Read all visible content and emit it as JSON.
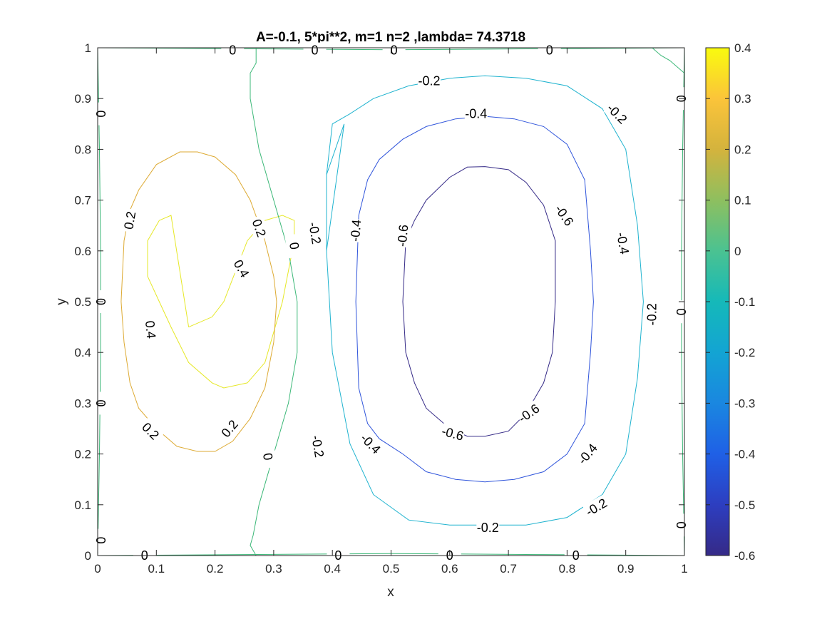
{
  "chart_data": {
    "type": "contour",
    "title": "A=-0.1, 5*pi**2, m=1 n=2 ,lambda= 74.3718",
    "xlabel": "x",
    "ylabel": "y",
    "xlim": [
      0,
      1
    ],
    "ylim": [
      0,
      1
    ],
    "xticks": [
      "0",
      "0.1",
      "0.2",
      "0.3",
      "0.4",
      "0.5",
      "0.6",
      "0.7",
      "0.8",
      "0.9",
      "1"
    ],
    "yticks": [
      "0",
      "0.1",
      "0.2",
      "0.3",
      "0.4",
      "0.5",
      "0.6",
      "0.7",
      "0.8",
      "0.9",
      "1"
    ],
    "grid": false,
    "colormap": "parula",
    "colorbar": {
      "location": "right",
      "clim": [
        -0.6,
        0.4
      ],
      "ticks": [
        "0.4",
        "0.3",
        "0.2",
        "0.1",
        "0",
        "-0.1",
        "-0.2",
        "-0.3",
        "-0.4",
        "-0.5",
        "-0.6"
      ]
    },
    "contours": [
      {
        "level": 0.4,
        "color": "#e6e827",
        "x": [
          0.155,
          0.195,
          0.215,
          0.255,
          0.285,
          0.315,
          0.335,
          0.335,
          0.315,
          0.285,
          0.255,
          0.215,
          0.195,
          0.155,
          0.125,
          0.105,
          0.085,
          0.085,
          0.105,
          0.125,
          0.155
        ],
        "y": [
          0.45,
          0.47,
          0.5,
          0.62,
          0.66,
          0.67,
          0.66,
          0.62,
          0.5,
          0.38,
          0.34,
          0.33,
          0.34,
          0.38,
          0.45,
          0.5,
          0.55,
          0.62,
          0.66,
          0.67,
          0.45
        ]
      },
      {
        "level": 0.2,
        "color": "#ddaa33",
        "x": [
          0.04,
          0.045,
          0.055,
          0.07,
          0.1,
          0.14,
          0.17,
          0.2,
          0.235,
          0.26,
          0.285,
          0.3,
          0.305,
          0.3,
          0.285,
          0.26,
          0.23,
          0.2,
          0.17,
          0.135,
          0.1,
          0.07,
          0.055,
          0.045,
          0.04
        ],
        "y": [
          0.5,
          0.62,
          0.68,
          0.72,
          0.77,
          0.795,
          0.795,
          0.785,
          0.75,
          0.7,
          0.62,
          0.55,
          0.5,
          0.42,
          0.33,
          0.27,
          0.225,
          0.205,
          0.205,
          0.215,
          0.25,
          0.29,
          0.34,
          0.42,
          0.5
        ]
      },
      {
        "level": 0,
        "color": "#3cb878",
        "x": [
          0.27,
          0.27,
          0.26,
          0.26,
          0.275,
          0.3,
          0.325,
          0.34,
          0.34,
          0.325,
          0.3,
          0.275,
          0.265,
          0.26,
          0.27
        ],
        "y": [
          1.0,
          0.97,
          0.95,
          0.9,
          0.8,
          0.7,
          0.6,
          0.5,
          0.4,
          0.3,
          0.2,
          0.1,
          0.04,
          0.02,
          0.0
        ]
      },
      {
        "level": -0.2,
        "color": "#1fb3cf",
        "x": [
          0.42,
          0.39,
          0.39,
          0.4,
          0.43,
          0.47,
          0.53,
          0.6,
          0.66,
          0.73,
          0.8,
          0.86,
          0.9,
          0.92,
          0.93,
          0.92,
          0.9,
          0.86,
          0.8,
          0.73,
          0.66,
          0.6,
          0.53,
          0.47,
          0.43,
          0.4,
          0.39,
          0.39,
          0.42
        ],
        "y": [
          0.85,
          0.75,
          0.6,
          0.4,
          0.22,
          0.12,
          0.07,
          0.06,
          0.06,
          0.06,
          0.075,
          0.12,
          0.2,
          0.35,
          0.5,
          0.65,
          0.8,
          0.88,
          0.925,
          0.94,
          0.945,
          0.94,
          0.925,
          0.9,
          0.87,
          0.85,
          0.75,
          0.6,
          0.85
        ]
      },
      {
        "level": -0.4,
        "color": "#3055db",
        "x": [
          0.44,
          0.445,
          0.46,
          0.48,
          0.52,
          0.56,
          0.61,
          0.66,
          0.71,
          0.76,
          0.8,
          0.83,
          0.84,
          0.845,
          0.84,
          0.83,
          0.8,
          0.76,
          0.71,
          0.66,
          0.61,
          0.56,
          0.52,
          0.48,
          0.46,
          0.445,
          0.44
        ],
        "y": [
          0.5,
          0.67,
          0.74,
          0.78,
          0.82,
          0.845,
          0.86,
          0.865,
          0.86,
          0.845,
          0.81,
          0.74,
          0.6,
          0.5,
          0.4,
          0.26,
          0.2,
          0.165,
          0.15,
          0.145,
          0.15,
          0.165,
          0.2,
          0.23,
          0.26,
          0.33,
          0.5
        ]
      },
      {
        "level": -0.6,
        "color": "#352a87",
        "x": [
          0.52,
          0.525,
          0.54,
          0.56,
          0.6,
          0.63,
          0.66,
          0.7,
          0.73,
          0.76,
          0.78,
          0.78,
          0.775,
          0.76,
          0.73,
          0.7,
          0.66,
          0.63,
          0.6,
          0.56,
          0.54,
          0.525,
          0.52
        ],
        "y": [
          0.5,
          0.62,
          0.66,
          0.7,
          0.745,
          0.765,
          0.766,
          0.76,
          0.735,
          0.69,
          0.62,
          0.5,
          0.4,
          0.34,
          0.28,
          0.245,
          0.235,
          0.235,
          0.25,
          0.29,
          0.34,
          0.4,
          0.5
        ]
      },
      {
        "level": 0,
        "color": "#3cb878",
        "x": [
          0.0,
          0.003,
          0.005,
          0.005,
          0.003,
          0.0
        ],
        "y": [
          0.0,
          0.2,
          0.4,
          0.6,
          0.8,
          1.0
        ]
      },
      {
        "level": 0,
        "color": "#3cb878",
        "x": [
          0.945,
          0.96,
          0.975,
          0.99,
          1.0
        ],
        "y": [
          1.0,
          0.985,
          0.975,
          0.96,
          0.95
        ]
      },
      {
        "level": 0,
        "color": "#3cb878",
        "x": [
          0.0,
          0.25,
          0.5,
          0.75,
          1.0
        ],
        "y": [
          0.0,
          0.002,
          0.004,
          0.002,
          0.0
        ]
      },
      {
        "level": 0,
        "color": "#3cb878",
        "x": [
          0.0,
          0.25,
          0.5,
          0.75,
          1.0
        ],
        "y": [
          1.0,
          0.998,
          0.996,
          0.998,
          1.0
        ]
      },
      {
        "level": 0,
        "color": "#3cb878",
        "x": [
          1.0,
          0.997,
          0.995,
          0.995,
          0.997,
          1.0
        ],
        "y": [
          0.0,
          0.2,
          0.4,
          0.6,
          0.8,
          1.0
        ]
      }
    ],
    "contour_labels": [
      {
        "text": "0",
        "x": 0.23,
        "y": 0.995,
        "rotate": 0
      },
      {
        "text": "0",
        "x": 0.37,
        "y": 0.995,
        "rotate": 0
      },
      {
        "text": "0",
        "x": 0.505,
        "y": 0.995,
        "rotate": 0
      },
      {
        "text": "0",
        "x": 0.77,
        "y": 0.995,
        "rotate": 0
      },
      {
        "text": "0",
        "x": 0.005,
        "y": 0.87,
        "rotate": 90
      },
      {
        "text": "0",
        "x": 0.005,
        "y": 0.5,
        "rotate": 90
      },
      {
        "text": "0",
        "x": 0.005,
        "y": 0.3,
        "rotate": 90
      },
      {
        "text": "0",
        "x": 0.005,
        "y": 0.03,
        "rotate": 90
      },
      {
        "text": "0",
        "x": 0.08,
        "y": 0.0,
        "rotate": 0
      },
      {
        "text": "0",
        "x": 0.41,
        "y": 0.0,
        "rotate": 0
      },
      {
        "text": "0",
        "x": 0.6,
        "y": 0.0,
        "rotate": 0
      },
      {
        "text": "0",
        "x": 0.815,
        "y": 0.0,
        "rotate": 0
      },
      {
        "text": "0",
        "x": 0.995,
        "y": 0.9,
        "rotate": -90
      },
      {
        "text": "0",
        "x": 0.995,
        "y": 0.48,
        "rotate": -90
      },
      {
        "text": "0",
        "x": 0.995,
        "y": 0.06,
        "rotate": -90
      },
      {
        "text": "0",
        "x": 0.335,
        "y": 0.61,
        "rotate": 80
      },
      {
        "text": "0",
        "x": 0.29,
        "y": 0.195,
        "rotate": 80
      },
      {
        "text": "-0.2",
        "x": 0.565,
        "y": 0.935,
        "rotate": 0
      },
      {
        "text": "-0.2",
        "x": 0.885,
        "y": 0.87,
        "rotate": 45
      },
      {
        "text": "-0.2",
        "x": 0.37,
        "y": 0.635,
        "rotate": 80
      },
      {
        "text": "-0.2",
        "x": 0.375,
        "y": 0.215,
        "rotate": 80
      },
      {
        "text": "-0.2",
        "x": 0.945,
        "y": 0.475,
        "rotate": -90
      },
      {
        "text": "-0.2",
        "x": 0.85,
        "y": 0.095,
        "rotate": -30
      },
      {
        "text": "-0.2",
        "x": 0.665,
        "y": 0.055,
        "rotate": 0
      },
      {
        "text": "-0.4",
        "x": 0.645,
        "y": 0.87,
        "rotate": 0
      },
      {
        "text": "-0.4",
        "x": 0.44,
        "y": 0.64,
        "rotate": -85
      },
      {
        "text": "-0.4",
        "x": 0.895,
        "y": 0.615,
        "rotate": 80
      },
      {
        "text": "-0.4",
        "x": 0.465,
        "y": 0.22,
        "rotate": 45
      },
      {
        "text": "-0.4",
        "x": 0.835,
        "y": 0.2,
        "rotate": -50
      },
      {
        "text": "-0.6",
        "x": 0.52,
        "y": 0.63,
        "rotate": -85
      },
      {
        "text": "-0.6",
        "x": 0.795,
        "y": 0.67,
        "rotate": 55
      },
      {
        "text": "-0.6",
        "x": 0.605,
        "y": 0.24,
        "rotate": 15
      },
      {
        "text": "-0.6",
        "x": 0.735,
        "y": 0.28,
        "rotate": -35
      },
      {
        "text": "0.2",
        "x": 0.055,
        "y": 0.66,
        "rotate": -80
      },
      {
        "text": "0.2",
        "x": 0.275,
        "y": 0.645,
        "rotate": 70
      },
      {
        "text": "0.2",
        "x": 0.09,
        "y": 0.245,
        "rotate": 45
      },
      {
        "text": "0.2",
        "x": 0.225,
        "y": 0.25,
        "rotate": -50
      },
      {
        "text": "0.4",
        "x": 0.245,
        "y": 0.565,
        "rotate": 60
      },
      {
        "text": "0.4",
        "x": 0.09,
        "y": 0.445,
        "rotate": 85
      }
    ]
  }
}
